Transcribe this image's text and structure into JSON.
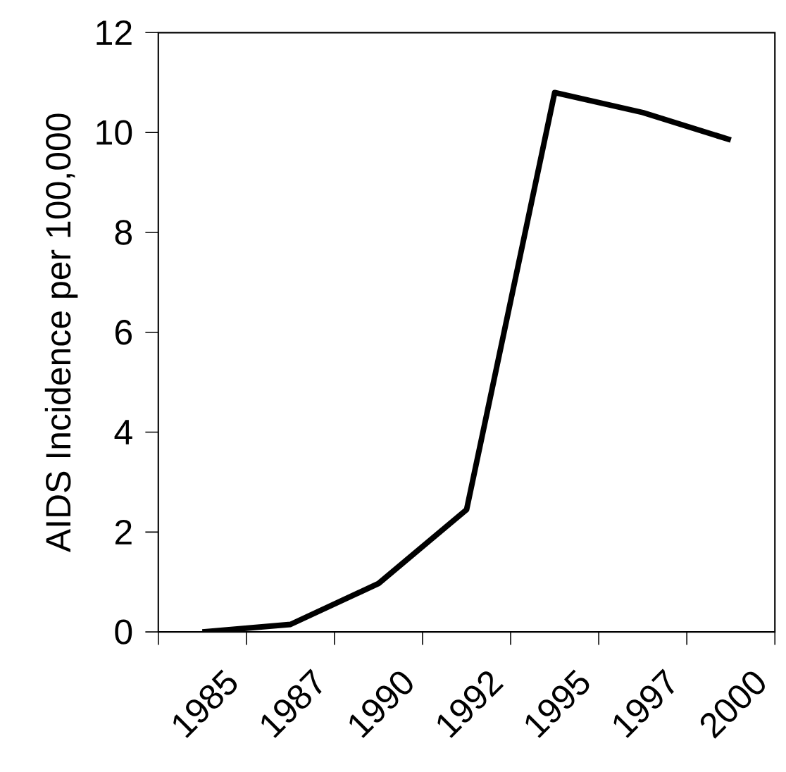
{
  "chart_data": {
    "type": "line",
    "ylabel": "AIDS Incidence per 100,000",
    "categories": [
      "1985",
      "1987",
      "1990",
      "1992",
      "1995",
      "1997",
      "2000"
    ],
    "values": [
      0.0,
      0.15,
      0.97,
      2.45,
      10.8,
      10.4,
      9.85
    ],
    "color": "#000000",
    "marker": "none",
    "line_style": "solid",
    "ylim": [
      0,
      12
    ],
    "yticks": [
      0,
      2,
      4,
      6,
      8,
      10,
      12
    ],
    "grid": false
  }
}
